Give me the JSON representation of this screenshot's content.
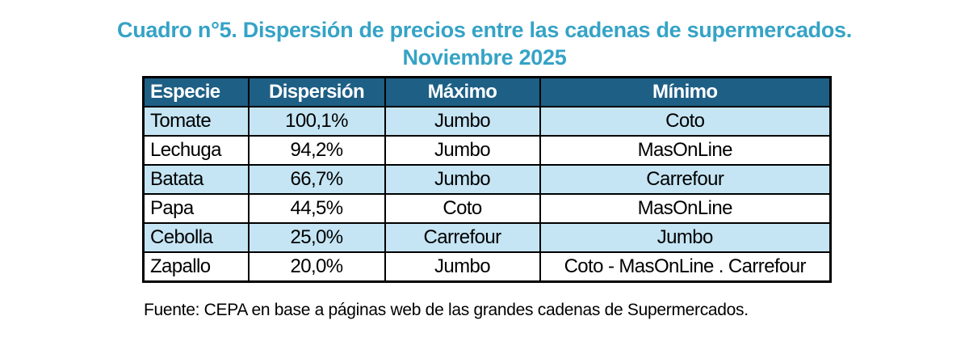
{
  "title": {
    "line1": "Cuadro n°5. Dispersión de precios entre las cadenas de supermercados.",
    "line2": "Noviembre 2025"
  },
  "footer": {
    "source": "Fuente: CEPA en base a páginas web de las grandes cadenas de Supermercados."
  },
  "colors": {
    "title": "#35A3C6",
    "header_bg": "#1E5F85",
    "header_text": "#FFFFFF",
    "row_alt_bg": "#C5E5F4",
    "row_bg": "#FFFFFF",
    "border": "#000000"
  },
  "chart_data": {
    "type": "table",
    "title": "Cuadro n°5. Dispersión de precios entre las cadenas de supermercados. Noviembre 2025",
    "columns": [
      "Especie",
      "Dispersión",
      "Máximo",
      "Mínimo"
    ],
    "rows": [
      [
        "Tomate",
        "100,1%",
        "Jumbo",
        "Coto"
      ],
      [
        "Lechuga",
        "94,2%",
        "Jumbo",
        "MasOnLine"
      ],
      [
        "Batata",
        "66,7%",
        "Jumbo",
        "Carrefour"
      ],
      [
        "Papa",
        "44,5%",
        "Coto",
        "MasOnLine"
      ],
      [
        "Cebolla",
        "25,0%",
        "Carrefour",
        "Jumbo"
      ],
      [
        "Zapallo",
        "20,0%",
        "Jumbo",
        "Coto - MasOnLine . Carrefour"
      ]
    ],
    "source": "Fuente: CEPA en base a páginas web de las grandes cadenas de Supermercados.",
    "layout": {
      "alternating_row_shading": "rows 1,3,5 light blue; rows 2,4,6 white",
      "first_column_align": "left",
      "other_columns_align": "center"
    }
  }
}
